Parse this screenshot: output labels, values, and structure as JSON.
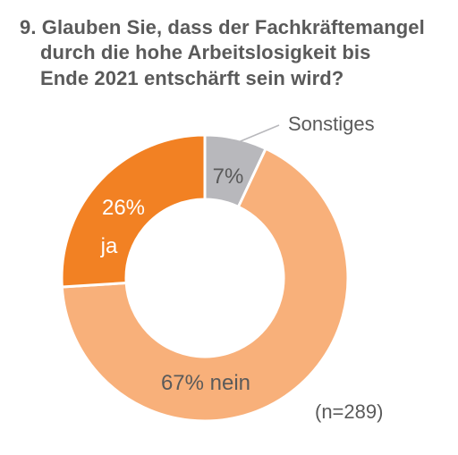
{
  "title_lines": [
    "9. Glauben Sie, dass der Fachkräftemangel",
    "durch die hohe Arbeitslosigkeit bis",
    "Ende 2021 entschärft sein wird?"
  ],
  "note": "(n=289)",
  "chart_data": {
    "type": "pie",
    "variant": "donut",
    "slices": [
      {
        "label": "Sonstiges",
        "value": 7,
        "value_label": "7%",
        "color": "#b8b8bc",
        "text_color": "#5a5a5a"
      },
      {
        "label": "nein",
        "value": 67,
        "value_label": "67%",
        "color": "#f8b07a",
        "text_color": "#5a5a5a"
      },
      {
        "label": "ja",
        "value": 26,
        "value_label": "26%",
        "color": "#f28123",
        "text_color": "#ffffff"
      }
    ]
  }
}
